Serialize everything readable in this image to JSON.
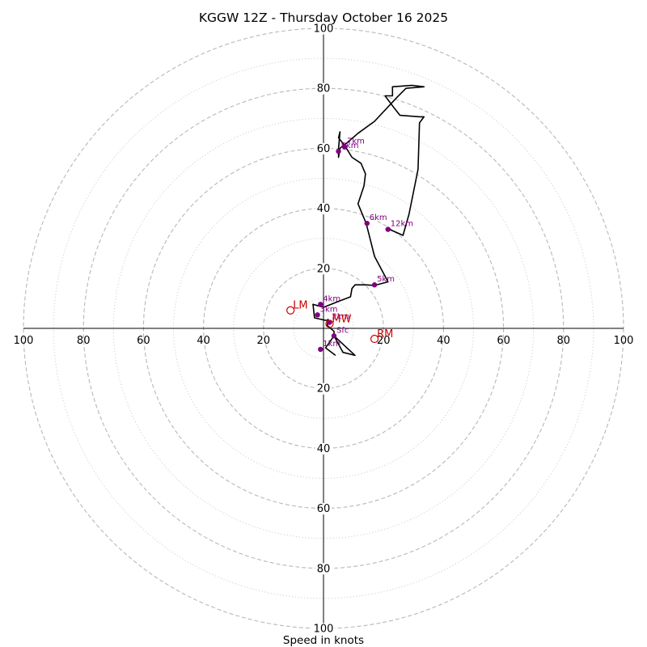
{
  "chart_data": {
    "type": "hodograph",
    "title": "KGGW 12Z - Thursday October 16 2025",
    "xlabel": "Speed in knots",
    "units": "knots",
    "max_speed": 100,
    "ring_major": [
      20,
      40,
      60,
      80,
      100
    ],
    "ring_minor": [
      10,
      30,
      50,
      70,
      90
    ],
    "tick_values": [
      "20",
      "40",
      "60",
      "80",
      "100"
    ],
    "trace": [
      [
        4,
        -9
      ],
      [
        0.7,
        -6.5
      ],
      [
        3.5,
        -2.5
      ],
      [
        6.5,
        -8
      ],
      [
        10.5,
        -9
      ],
      [
        3.5,
        -2.5
      ],
      [
        3.5,
        -1
      ],
      [
        1.2,
        1
      ],
      [
        1.5,
        3
      ],
      [
        1.5,
        2.7
      ],
      [
        0.5,
        2.7
      ],
      [
        -3,
        3.5
      ],
      [
        -3.5,
        8
      ],
      [
        0,
        7
      ],
      [
        5,
        9
      ],
      [
        9,
        10.5
      ],
      [
        9.5,
        13.3
      ],
      [
        10.5,
        14.5
      ],
      [
        14,
        14.5
      ],
      [
        17,
        14.3
      ],
      [
        21.5,
        15.5
      ],
      [
        17,
        24
      ],
      [
        15,
        32
      ],
      [
        14.2,
        35
      ],
      [
        11.5,
        41.5
      ],
      [
        13.5,
        47.5
      ],
      [
        14,
        51.5
      ],
      [
        12.5,
        55
      ],
      [
        9.5,
        57
      ],
      [
        7,
        61
      ],
      [
        5,
        63.5
      ],
      [
        5.5,
        65.5
      ],
      [
        5,
        60
      ],
      [
        5,
        57
      ],
      [
        5.5,
        60
      ],
      [
        8,
        62
      ],
      [
        11.5,
        65
      ],
      [
        17,
        69
      ],
      [
        24.5,
        77
      ],
      [
        27.5,
        80
      ],
      [
        33.5,
        80.5
      ],
      [
        29.5,
        81
      ],
      [
        23,
        80.5
      ],
      [
        23,
        77.5
      ],
      [
        20.5,
        77.5
      ],
      [
        23.5,
        73.5
      ],
      [
        25.5,
        71
      ],
      [
        32,
        70.5
      ],
      [
        33.5,
        70.5
      ],
      [
        32,
        68.5
      ],
      [
        31.5,
        53
      ],
      [
        28.5,
        38
      ],
      [
        26.5,
        31
      ],
      [
        22,
        33
      ]
    ],
    "height_points": [
      {
        "label": "Sfc",
        "x": 3.5,
        "y": -2.5
      },
      {
        "label": "1km",
        "x": -1,
        "y": -7
      },
      {
        "label": "2km",
        "x": 2,
        "y": 2
      },
      {
        "label": "3km",
        "x": -2,
        "y": 4.5
      },
      {
        "label": "4km",
        "x": -1,
        "y": 8
      },
      {
        "label": "5km",
        "x": 17,
        "y": 14.5
      },
      {
        "label": "6km",
        "x": 14.5,
        "y": 35
      },
      {
        "label": "7km",
        "x": 7,
        "y": 60.5
      },
      {
        "label": "8km",
        "x": 5,
        "y": 59
      },
      {
        "label": "12km",
        "x": 21.5,
        "y": 33
      }
    ],
    "motion_markers": [
      {
        "label": "LM",
        "x": -11,
        "y": 6
      },
      {
        "label": "RM",
        "x": 17,
        "y": -3.5
      },
      {
        "label": "MW",
        "x": 2,
        "y": 1.5
      }
    ],
    "colors": {
      "trace": "#000000",
      "height_points": "#800080",
      "motion_markers": "#cc0000",
      "rings": "#b8b8b8",
      "axes": "#000000"
    }
  }
}
